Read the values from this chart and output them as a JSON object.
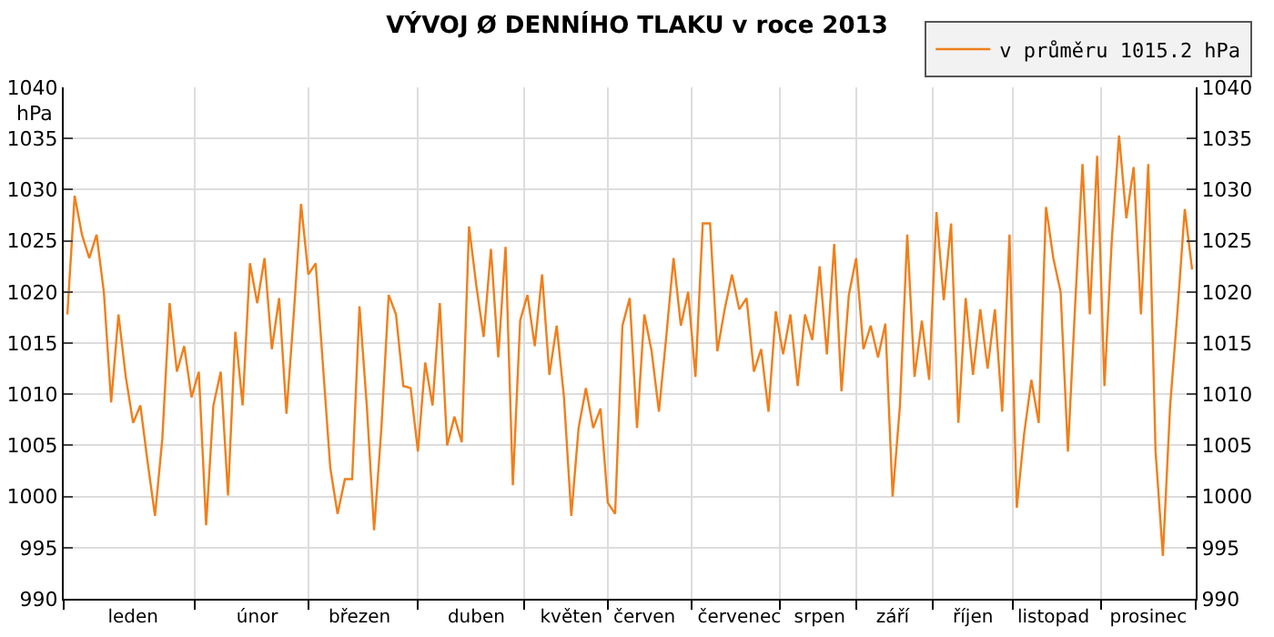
{
  "chart_data": {
    "type": "line",
    "title": "VÝVOJ Ø DENNÍHO TLAKU v roce 2013",
    "ylabel": "hPa",
    "categories": [
      null,
      null,
      null,
      null,
      null,
      null,
      null,
      null,
      null,
      "leden",
      null,
      null,
      null,
      null,
      null,
      null,
      null,
      null,
      null,
      null,
      null,
      null,
      null,
      null,
      null,
      null,
      "únor",
      null,
      null,
      null,
      null,
      null,
      null,
      null,
      null,
      null,
      null,
      null,
      null,
      null,
      "březen",
      null,
      null,
      null,
      null,
      null,
      null,
      null,
      null,
      null,
      null,
      null,
      null,
      null,
      null,
      null,
      "duben",
      null,
      null,
      null,
      null,
      null,
      null,
      null,
      null,
      null,
      null,
      null,
      null,
      "květen",
      null,
      null,
      null,
      null,
      null,
      null,
      null,
      null,
      null,
      "červen",
      null,
      null,
      null,
      null,
      null,
      null,
      null,
      null,
      null,
      null,
      null,
      null,
      "červenec",
      null,
      null,
      null,
      null,
      null,
      null,
      null,
      null,
      null,
      null,
      "srpen",
      null,
      null,
      null,
      null,
      null,
      null,
      null,
      null,
      null,
      "září",
      null,
      null,
      null,
      null,
      null,
      null,
      null,
      null,
      null,
      null,
      "říjen",
      null,
      null,
      null,
      null,
      null,
      null,
      null,
      null,
      null,
      null,
      "listopad",
      null,
      null,
      null,
      null,
      null,
      null,
      null,
      null,
      null,
      null,
      null,
      null,
      "prosinec",
      null,
      null,
      null,
      null,
      null,
      null
    ],
    "series": [
      {
        "name": "v průměru 1015.2 hPa",
        "color": "#f07f1a",
        "values": [
          1017.8,
          1029.4,
          1025.6,
          1023.3,
          1025.6,
          1020,
          1009.2,
          1017.8,
          1011.7,
          1007.2,
          1008.9,
          1003.3,
          998.1,
          1005.6,
          1018.9,
          1012.2,
          1014.7,
          1009.7,
          1012.2,
          997.2,
          1008.9,
          1012.2,
          1000.1,
          1016.1,
          1008.9,
          1022.8,
          1018.9,
          1023.3,
          1014.4,
          1019.4,
          1008.1,
          1017.8,
          1028.6,
          1021.7,
          1022.8,
          1012.8,
          1002.8,
          998.3,
          1001.7,
          1001.7,
          1018.6,
          1008.9,
          996.7,
          1006.7,
          1019.7,
          1017.8,
          1010.8,
          1010.6,
          1004.4,
          1013.1,
          1008.9,
          1018.9,
          1005,
          1007.8,
          1005.3,
          1026.4,
          1020.6,
          1015.6,
          1024.2,
          1013.6,
          1024.4,
          1001.1,
          1017.2,
          1019.7,
          1014.7,
          1021.7,
          1011.9,
          1016.7,
          1009.7,
          998.1,
          1006.7,
          1010.6,
          1006.7,
          1008.6,
          999.4,
          998.3,
          1016.7,
          1019.4,
          1006.7,
          1017.8,
          1014.2,
          1008.3,
          1015.6,
          1023.3,
          1016.7,
          1020,
          1011.7,
          1026.7,
          1026.7,
          1014.2,
          1018.3,
          1021.7,
          1018.3,
          1019.4,
          1012.2,
          1014.4,
          1008.3,
          1018.1,
          1013.9,
          1017.8,
          1010.8,
          1017.8,
          1015.3,
          1022.5,
          1013.9,
          1024.7,
          1010.3,
          1019.7,
          1023.3,
          1014.4,
          1016.7,
          1013.6,
          1016.9,
          1000,
          1008.9,
          1025.6,
          1011.7,
          1017.2,
          1011.4,
          1027.8,
          1019.2,
          1026.7,
          1007.2,
          1019.4,
          1011.9,
          1018.3,
          1012.5,
          1018.3,
          1008.3,
          1025.6,
          998.9,
          1006.1,
          1011.4,
          1007.2,
          1028.3,
          1023.3,
          1020,
          1004.4,
          1018.9,
          1032.5,
          1017.8,
          1033.3,
          1010.8,
          1025,
          1035.3,
          1027.2,
          1032.2,
          1017.8,
          1032.5,
          1004.4,
          994.2,
          1008.9,
          1018.1,
          1028.1,
          1022.2
        ]
      }
    ],
    "ylim": [
      990,
      1040
    ],
    "yticks": [
      990,
      995,
      1000,
      1005,
      1010,
      1015,
      1020,
      1025,
      1030,
      1035,
      1040
    ],
    "y2lim": [
      990,
      1040
    ],
    "y2ticks": [
      990,
      995,
      1000,
      1005,
      1010,
      1015,
      1020,
      1025,
      1030,
      1035,
      1040
    ],
    "grid": true,
    "legend": "top right",
    "marker": "none",
    "line_style": "solid"
  }
}
